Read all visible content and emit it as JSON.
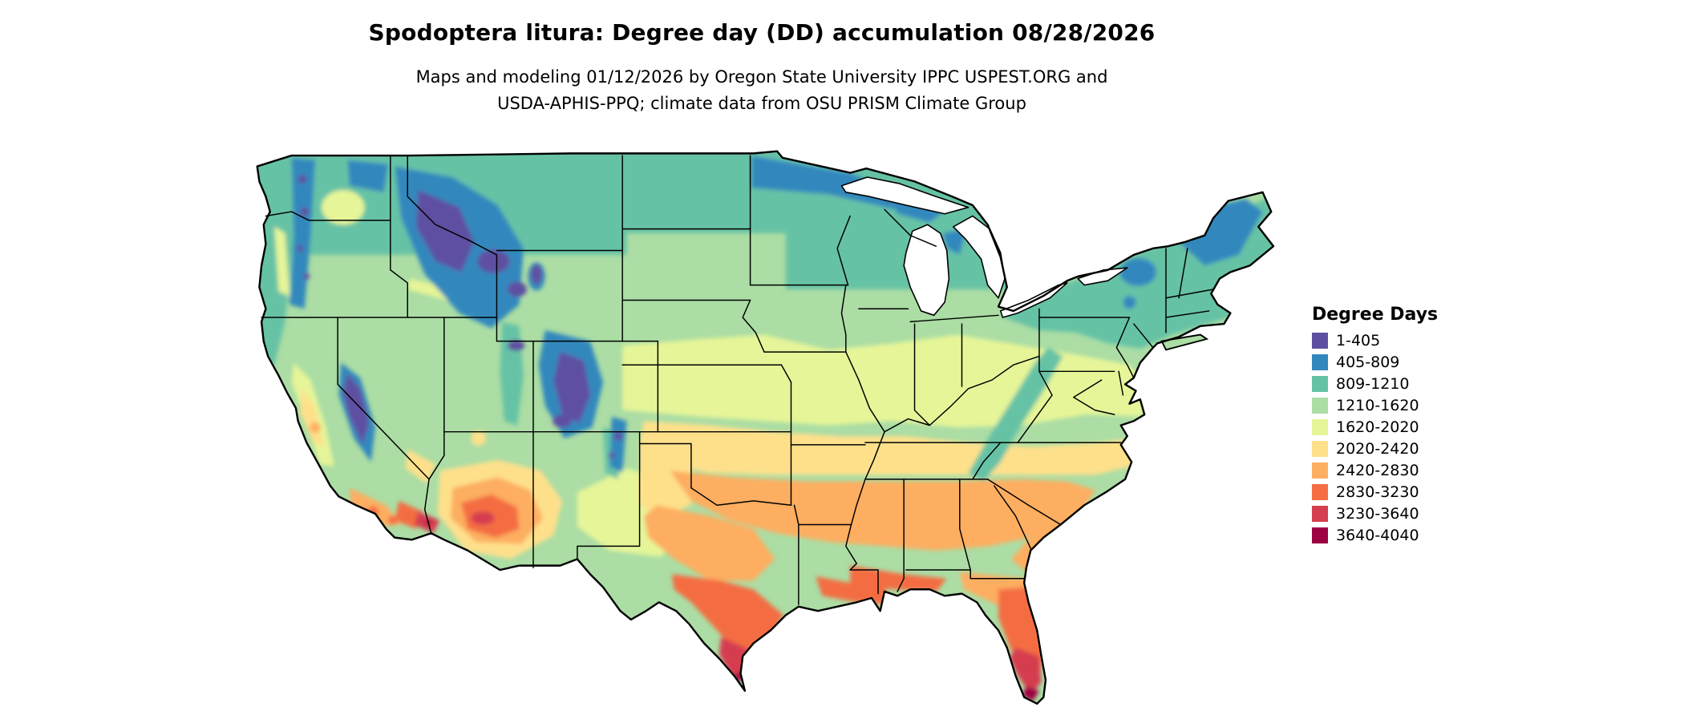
{
  "header": {
    "title": "Spodoptera litura: Degree day (DD) accumulation 08/28/2026",
    "subtitle_line1": "Maps and modeling 01/12/2026 by Oregon State University IPPC USPEST.ORG and",
    "subtitle_line2": "USDA-APHIS-PPQ; climate data from OSU PRISM Climate Group"
  },
  "legend": {
    "title": "Degree Days",
    "entries": [
      {
        "label": "1-405",
        "color": "#5e4fa2"
      },
      {
        "label": "405-809",
        "color": "#3288bd"
      },
      {
        "label": "809-1210",
        "color": "#66c2a5"
      },
      {
        "label": "1210-1620",
        "color": "#abdda4"
      },
      {
        "label": "1620-2020",
        "color": "#e6f598"
      },
      {
        "label": "2020-2420",
        "color": "#fee08b"
      },
      {
        "label": "2420-2830",
        "color": "#fdae61"
      },
      {
        "label": "2830-3230",
        "color": "#f46d43"
      },
      {
        "label": "3230-3640",
        "color": "#d53e4f"
      },
      {
        "label": "3640-4040",
        "color": "#9e0142"
      }
    ]
  },
  "map": {
    "description": "Continental United States choropleth of accumulated degree days, cool (purple/blue) in mountain west and northern states, warm (orange/red) across the south, Arizona, Texas and Florida",
    "land_base_color": "#abdda4",
    "boundary_color": "#000000",
    "background_color": "#ffffff"
  }
}
